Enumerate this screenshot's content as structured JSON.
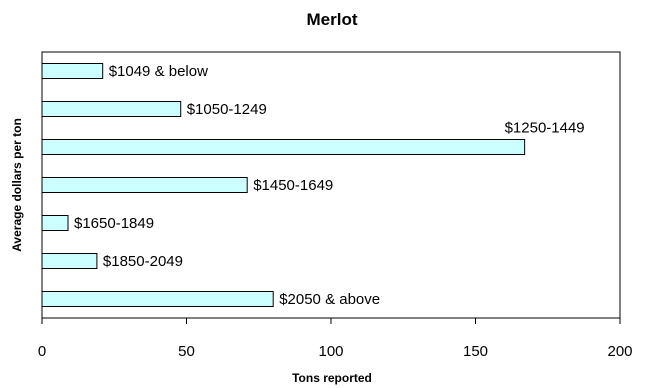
{
  "chart_data": {
    "type": "bar",
    "orientation": "horizontal",
    "title": "Merlot",
    "xlabel": "Tons reported",
    "ylabel": "Average dollars per ton",
    "categories": [
      "$1049 & below",
      "$1050-1249",
      "$1250-1449",
      "$1450-1649",
      "$1650-1849",
      "$1850-2049",
      "$2050 & above"
    ],
    "values": [
      21,
      48,
      167,
      71,
      9,
      19,
      80
    ],
    "xlim": [
      0,
      200
    ],
    "xticks": [
      0,
      50,
      100,
      150,
      200
    ],
    "grid": false,
    "legend": "none",
    "colors": {
      "bar_fill": "#ccffff",
      "bar_stroke": "#000000",
      "plot_border": "#000000"
    }
  }
}
